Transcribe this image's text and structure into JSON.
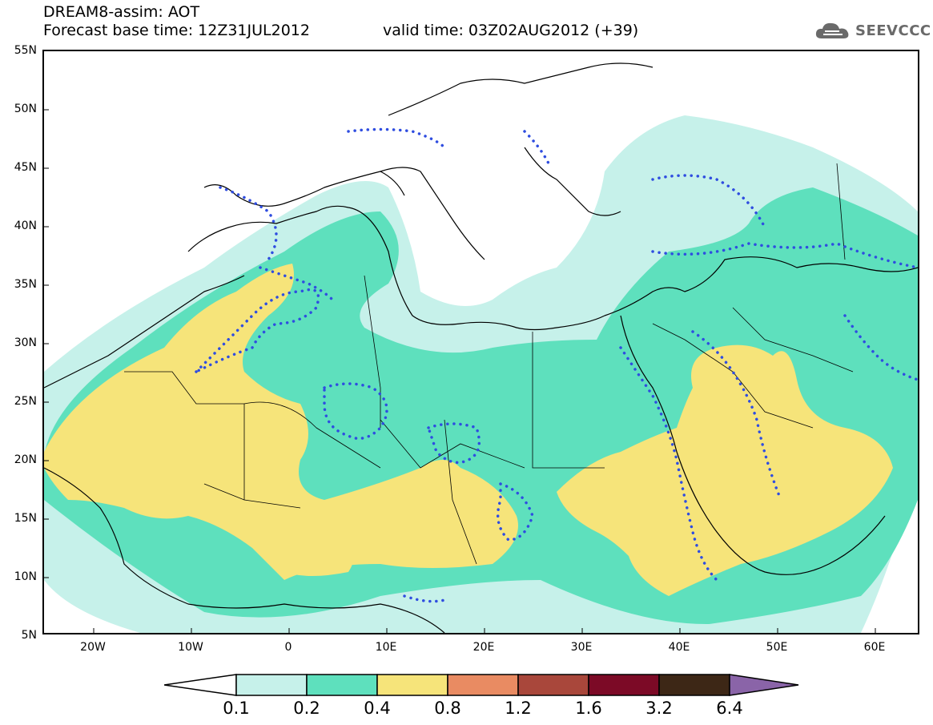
{
  "header": {
    "title": "DREAM8-assim: AOT",
    "base_time": "Forecast base time: 12Z31JUL2012",
    "valid_time": "valid time: 03Z02AUG2012 (+39)",
    "logo_text": "SEEVCCC"
  },
  "axes": {
    "lat_labels": [
      "55N",
      "50N",
      "45N",
      "40N",
      "35N",
      "30N",
      "25N",
      "20N",
      "15N",
      "10N",
      "5N"
    ],
    "lon_labels": [
      "20W",
      "10W",
      "0",
      "10E",
      "20E",
      "30E",
      "40E",
      "50E",
      "60E"
    ]
  },
  "colorbar": {
    "labels": [
      "0.1",
      "0.2",
      "0.4",
      "0.8",
      "1.2",
      "1.6",
      "3.2",
      "6.4"
    ],
    "colors": [
      "#ffffff",
      "#c6f1ea",
      "#5ee0bd",
      "#f6e47a",
      "#e98b62",
      "#a9473b",
      "#7c0a26",
      "#3d2716",
      "#8a64a8"
    ]
  },
  "map": {
    "contour_color": "#2f4de0",
    "coast_color": "#000000"
  }
}
